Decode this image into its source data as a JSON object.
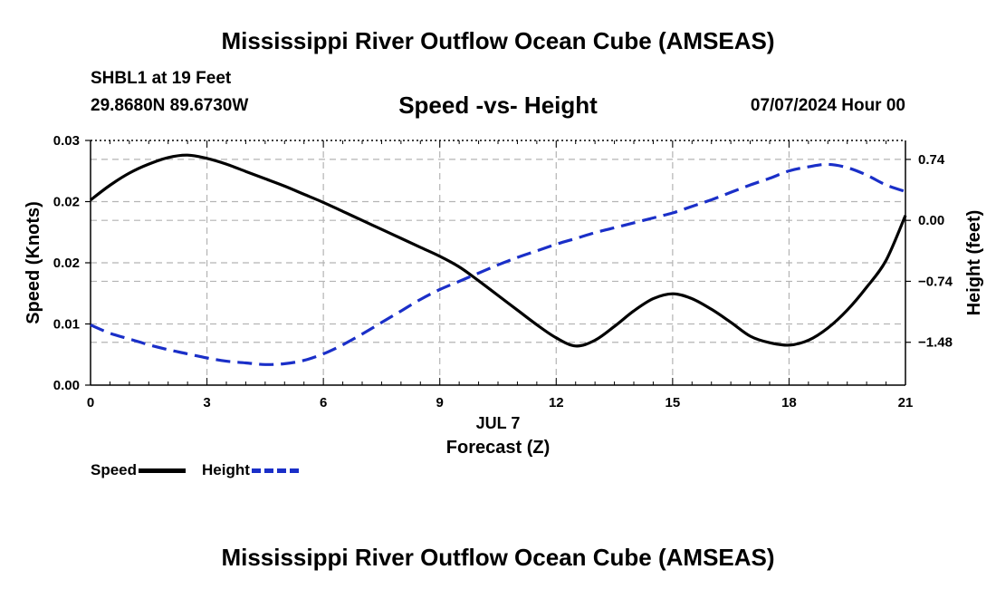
{
  "header": {
    "title": "Mississippi River Outflow Ocean Cube (AMSEAS)",
    "station": "SHBL1 at 19 Feet",
    "coords": "29.8680N  89.6730W",
    "subtitle": "Speed -vs- Height",
    "datetime": "07/07/2024 Hour 00"
  },
  "footer": {
    "title": "Mississippi River Outflow Ocean Cube (AMSEAS)"
  },
  "colors": {
    "speed": "#000000",
    "height": "#1a2fc8",
    "grid": "#b4b4b4"
  },
  "chart_data": {
    "type": "line",
    "title": "Speed -vs- Height",
    "xlabel": "Forecast (Z)",
    "date_label": "JUL 7",
    "ylabel_left": "Speed (Knots)",
    "ylabel_right": "Height (feet)",
    "xlim": [
      0,
      21
    ],
    "ylim_left": [
      0,
      0.03
    ],
    "ylim_right": [
      -2.0,
      0.97
    ],
    "x_ticks": [
      0,
      3,
      6,
      9,
      12,
      15,
      18,
      21
    ],
    "x_tick_labels": [
      "0",
      "3",
      "6",
      "9",
      "12",
      "15",
      "18",
      "21"
    ],
    "y_left_ticks": [
      0,
      0.0075,
      0.015,
      0.0225,
      0.03
    ],
    "y_left_tick_labels": [
      "0.00",
      "0.01",
      "0.02",
      "0.02",
      "0.03"
    ],
    "y_right_ticks": [
      -1.48,
      -0.74,
      0.0,
      0.74
    ],
    "y_right_tick_labels": [
      "−1.48",
      "−0.74",
      "0.00",
      "0.74"
    ],
    "grid": true,
    "legend_position": "bottom-left",
    "series": [
      {
        "name": "Speed",
        "axis": "left",
        "style": "solid",
        "x": [
          0,
          0.5,
          1,
          1.5,
          2,
          2.5,
          3,
          3.5,
          4,
          4.5,
          5,
          5.5,
          6,
          6.5,
          7,
          7.5,
          8,
          8.5,
          9,
          9.5,
          10,
          10.5,
          11,
          11.5,
          12,
          12.5,
          13,
          13.5,
          14,
          14.5,
          15,
          15.5,
          16,
          16.5,
          17,
          17.5,
          18,
          18.5,
          19,
          19.5,
          20,
          20.5,
          21
        ],
        "values": [
          0.0227,
          0.0245,
          0.026,
          0.0271,
          0.0279,
          0.0282,
          0.0278,
          0.0271,
          0.0262,
          0.0253,
          0.0244,
          0.0234,
          0.0224,
          0.0213,
          0.0202,
          0.0191,
          0.018,
          0.0169,
          0.0158,
          0.0145,
          0.0128,
          0.011,
          0.0092,
          0.0074,
          0.0058,
          0.0048,
          0.0055,
          0.0072,
          0.0091,
          0.0106,
          0.0112,
          0.0106,
          0.0093,
          0.0077,
          0.006,
          0.0052,
          0.0049,
          0.0055,
          0.007,
          0.0092,
          0.012,
          0.0153,
          0.0208
        ]
      },
      {
        "name": "Height",
        "axis": "right",
        "style": "dashed",
        "x": [
          0,
          0.5,
          1,
          1.5,
          2,
          2.5,
          3,
          3.5,
          4,
          4.5,
          5,
          5.5,
          6,
          6.5,
          7,
          7.5,
          8,
          8.5,
          9,
          9.5,
          10,
          10.5,
          11,
          11.5,
          12,
          12.5,
          13,
          13.5,
          14,
          14.5,
          15,
          15.5,
          16,
          16.5,
          17,
          17.5,
          18,
          18.5,
          19,
          19.5,
          20,
          20.5,
          21
        ],
        "values": [
          -1.27,
          -1.37,
          -1.44,
          -1.51,
          -1.57,
          -1.62,
          -1.67,
          -1.71,
          -1.73,
          -1.75,
          -1.74,
          -1.7,
          -1.62,
          -1.51,
          -1.38,
          -1.24,
          -1.1,
          -0.96,
          -0.84,
          -0.74,
          -0.64,
          -0.54,
          -0.45,
          -0.37,
          -0.29,
          -0.22,
          -0.15,
          -0.09,
          -0.03,
          0.03,
          0.09,
          0.17,
          0.25,
          0.34,
          0.43,
          0.51,
          0.6,
          0.65,
          0.68,
          0.64,
          0.55,
          0.43,
          0.35
        ]
      }
    ]
  }
}
